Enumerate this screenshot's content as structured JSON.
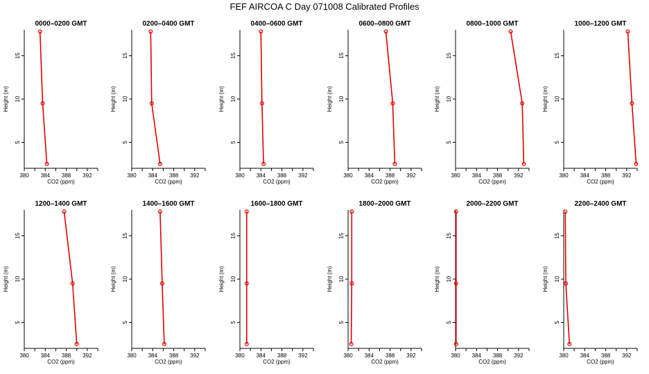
{
  "title": "FEF AIRCOA C  Day 071008  Calibrated Profiles",
  "chart_data": [
    {
      "type": "line",
      "title": "0000–0200 GMT",
      "xlabel": "CO2 (ppm)",
      "ylabel": "Height (m)",
      "xlim": [
        380,
        394
      ],
      "ylim": [
        2,
        18
      ],
      "xticks": [
        380,
        384,
        388,
        392
      ],
      "yticks": [
        5,
        10,
        15
      ],
      "series": [
        {
          "x": [
            384.3,
            383.5,
            383.0
          ],
          "y": [
            2.5,
            9.5,
            17.8
          ]
        }
      ]
    },
    {
      "type": "line",
      "title": "0200–0400 GMT",
      "xlabel": "CO2 (ppm)",
      "ylabel": "Height (m)",
      "xlim": [
        380,
        394
      ],
      "ylim": [
        2,
        18
      ],
      "xticks": [
        380,
        384,
        388,
        392
      ],
      "yticks": [
        5,
        10,
        15
      ],
      "series": [
        {
          "x": [
            385.4,
            383.8,
            383.6
          ],
          "y": [
            2.5,
            9.5,
            17.8
          ]
        }
      ]
    },
    {
      "type": "line",
      "title": "0400–0600 GMT",
      "xlabel": "CO2 (ppm)",
      "ylabel": "Height (m)",
      "xlim": [
        380,
        394
      ],
      "ylim": [
        2,
        18
      ],
      "xticks": [
        380,
        384,
        388,
        392
      ],
      "yticks": [
        5,
        10,
        15
      ],
      "series": [
        {
          "x": [
            384.5,
            384.2,
            384.0
          ],
          "y": [
            2.5,
            9.5,
            17.8
          ]
        }
      ]
    },
    {
      "type": "line",
      "title": "0600–0800 GMT",
      "xlabel": "CO2 (ppm)",
      "ylabel": "Height (m)",
      "xlim": [
        380,
        394
      ],
      "ylim": [
        2,
        18
      ],
      "xticks": [
        380,
        384,
        388,
        392
      ],
      "yticks": [
        5,
        10,
        15
      ],
      "series": [
        {
          "x": [
            388.9,
            388.5,
            387.2
          ],
          "y": [
            2.5,
            9.5,
            17.8
          ]
        }
      ]
    },
    {
      "type": "line",
      "title": "0800–1000 GMT",
      "xlabel": "CO2 (ppm)",
      "ylabel": "Height (m)",
      "xlim": [
        380,
        394
      ],
      "ylim": [
        2,
        18
      ],
      "xticks": [
        380,
        384,
        388,
        392
      ],
      "yticks": [
        5,
        10,
        15
      ],
      "series": [
        {
          "x": [
            393.0,
            392.7,
            390.5
          ],
          "y": [
            2.5,
            9.5,
            17.8
          ]
        }
      ]
    },
    {
      "type": "line",
      "title": "1000–1200 GMT",
      "xlabel": "CO2 (ppm)",
      "ylabel": "Height (m)",
      "xlim": [
        380,
        394
      ],
      "ylim": [
        2,
        18
      ],
      "xticks": [
        380,
        384,
        388,
        392
      ],
      "yticks": [
        5,
        10,
        15
      ],
      "series": [
        {
          "x": [
            393.8,
            393.0,
            392.2
          ],
          "y": [
            2.5,
            9.5,
            17.8
          ]
        }
      ]
    },
    {
      "type": "line",
      "title": "1200–1400 GMT",
      "xlabel": "CO2 (ppm)",
      "ylabel": "Height (m)",
      "xlim": [
        380,
        394
      ],
      "ylim": [
        2,
        18
      ],
      "xticks": [
        380,
        384,
        388,
        392
      ],
      "yticks": [
        5,
        10,
        15
      ],
      "series": [
        {
          "x": [
            390.0,
            389.2,
            387.6
          ],
          "y": [
            2.5,
            9.5,
            17.8
          ]
        }
      ]
    },
    {
      "type": "line",
      "title": "1400–1600 GMT",
      "xlabel": "CO2 (ppm)",
      "ylabel": "Height (m)",
      "xlim": [
        380,
        394
      ],
      "ylim": [
        2,
        18
      ],
      "xticks": [
        380,
        384,
        388,
        392
      ],
      "yticks": [
        5,
        10,
        15
      ],
      "series": [
        {
          "x": [
            386.2,
            385.8,
            385.4
          ],
          "y": [
            2.5,
            9.5,
            17.8
          ]
        }
      ]
    },
    {
      "type": "line",
      "title": "1600–1800 GMT",
      "xlabel": "CO2 (ppm)",
      "ylabel": "Height (m)",
      "xlim": [
        380,
        394
      ],
      "ylim": [
        2,
        18
      ],
      "xticks": [
        380,
        384,
        388,
        392
      ],
      "yticks": [
        5,
        10,
        15
      ],
      "series": [
        {
          "x": [
            381.3,
            381.3,
            381.3
          ],
          "y": [
            2.5,
            9.5,
            17.8
          ]
        }
      ]
    },
    {
      "type": "line",
      "title": "1800–2000 GMT",
      "xlabel": "CO2 (ppm)",
      "ylabel": "Height (m)",
      "xlim": [
        380,
        394
      ],
      "ylim": [
        2,
        18
      ],
      "xticks": [
        380,
        384,
        388,
        392
      ],
      "yticks": [
        5,
        10,
        15
      ],
      "series": [
        {
          "x": [
            380.6,
            380.7,
            380.7
          ],
          "y": [
            2.5,
            9.5,
            17.8
          ]
        }
      ]
    },
    {
      "type": "line",
      "title": "2000–2200 GMT",
      "xlabel": "CO2 (ppm)",
      "ylabel": "Height (m)",
      "xlim": [
        380,
        394
      ],
      "ylim": [
        2,
        18
      ],
      "xticks": [
        380,
        384,
        388,
        392
      ],
      "yticks": [
        5,
        10,
        15
      ],
      "series": [
        {
          "x": [
            380.1,
            380.1,
            380.1
          ],
          "y": [
            2.5,
            9.5,
            17.8
          ]
        }
      ]
    },
    {
      "type": "line",
      "title": "2200–2400 GMT",
      "xlabel": "CO2 (ppm)",
      "ylabel": "Height (m)",
      "xlim": [
        380,
        394
      ],
      "ylim": [
        2,
        18
      ],
      "xticks": [
        380,
        384,
        388,
        392
      ],
      "yticks": [
        5,
        10,
        15
      ],
      "series": [
        {
          "x": [
            381.1,
            380.4,
            380.3
          ],
          "y": [
            2.5,
            9.5,
            17.8
          ]
        }
      ]
    }
  ]
}
